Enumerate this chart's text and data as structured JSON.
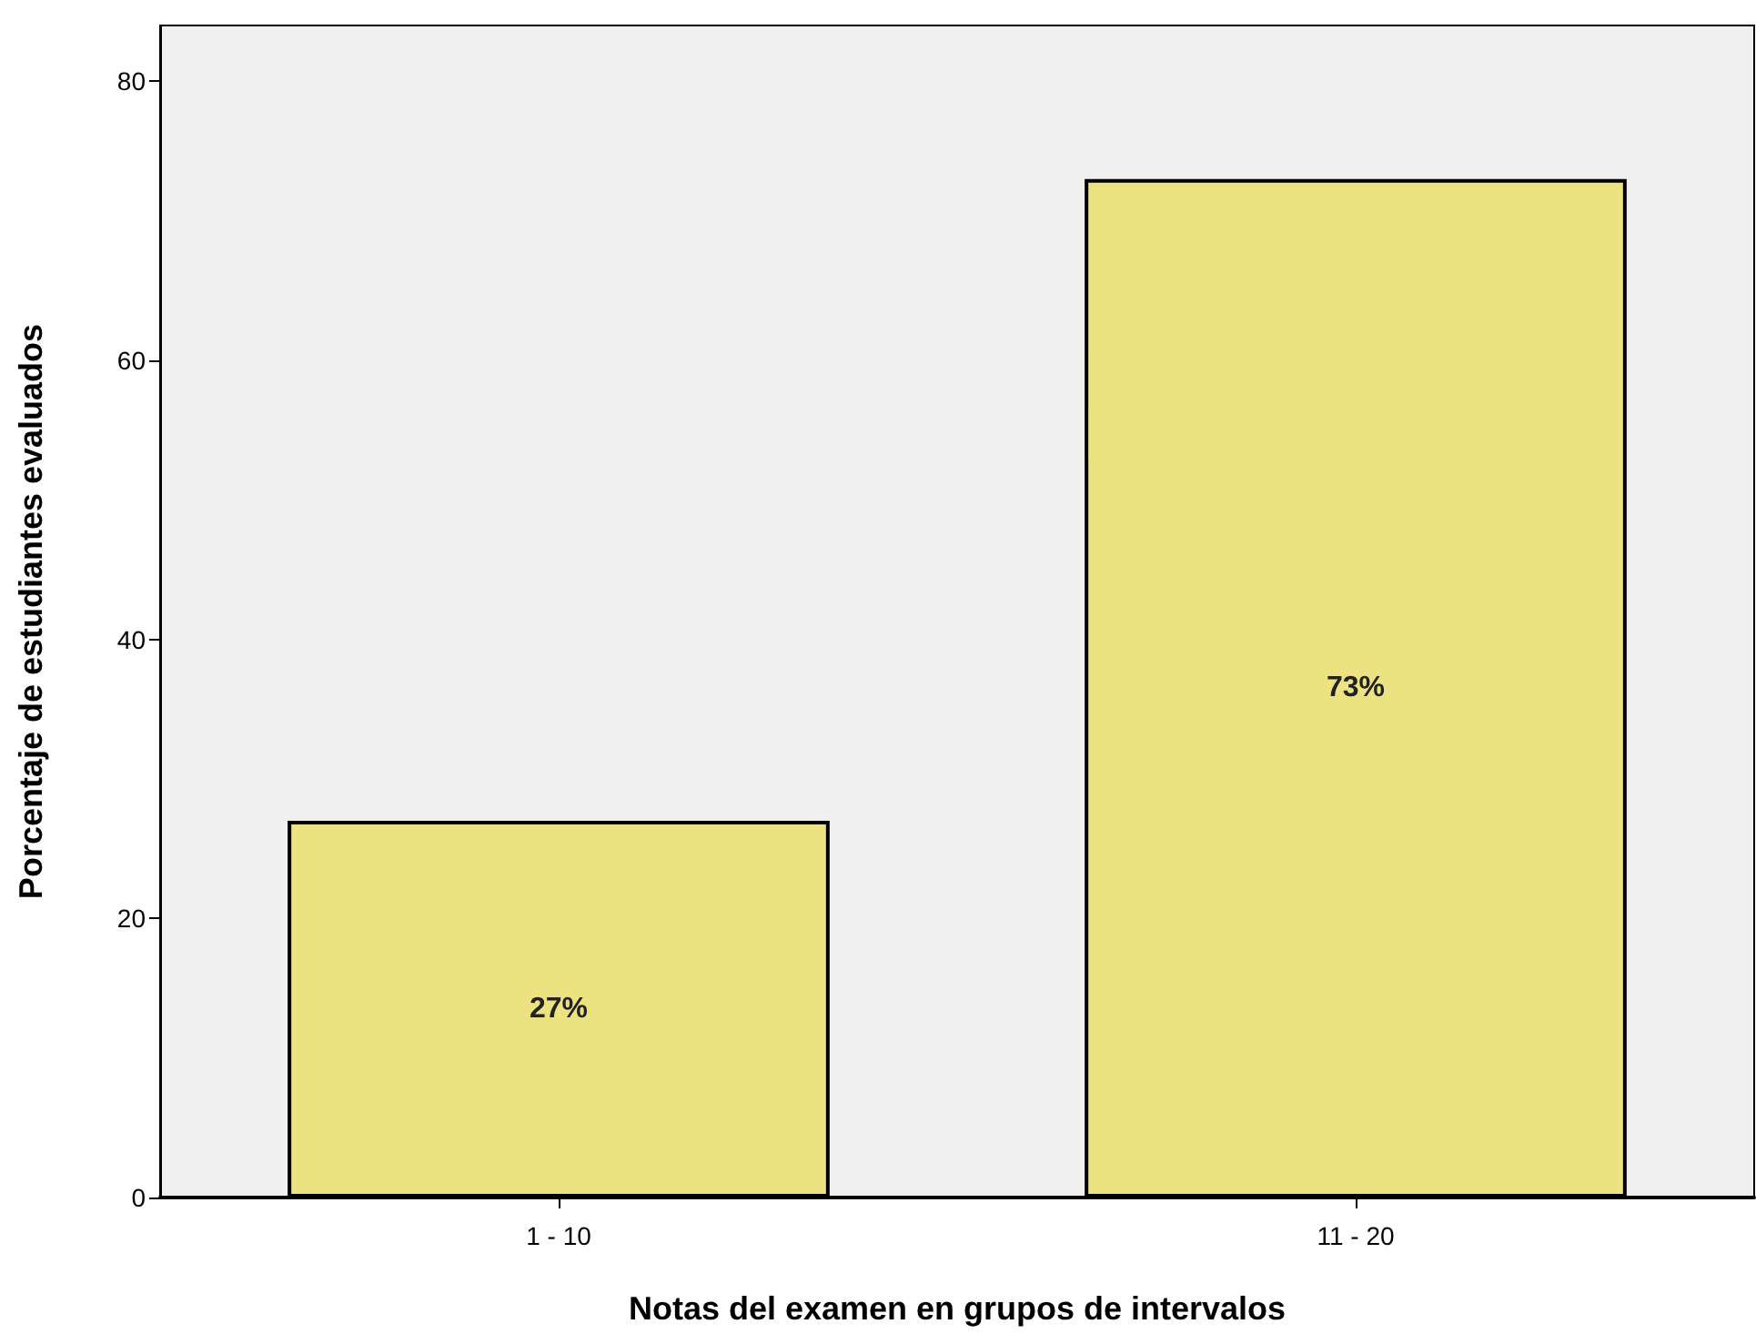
{
  "chart_data": {
    "type": "bar",
    "xlabel": "Notas del examen en grupos de intervalos",
    "ylabel": "Porcentaje de estudiantes evaluados",
    "categories": [
      "1 - 10",
      "11 - 20"
    ],
    "values": [
      27,
      73
    ],
    "value_labels": [
      "27%",
      "73%"
    ],
    "color": "#ece282",
    "ylim": [
      0,
      84
    ],
    "yticks": [
      0,
      20,
      40,
      60,
      80
    ],
    "grid": false
  }
}
